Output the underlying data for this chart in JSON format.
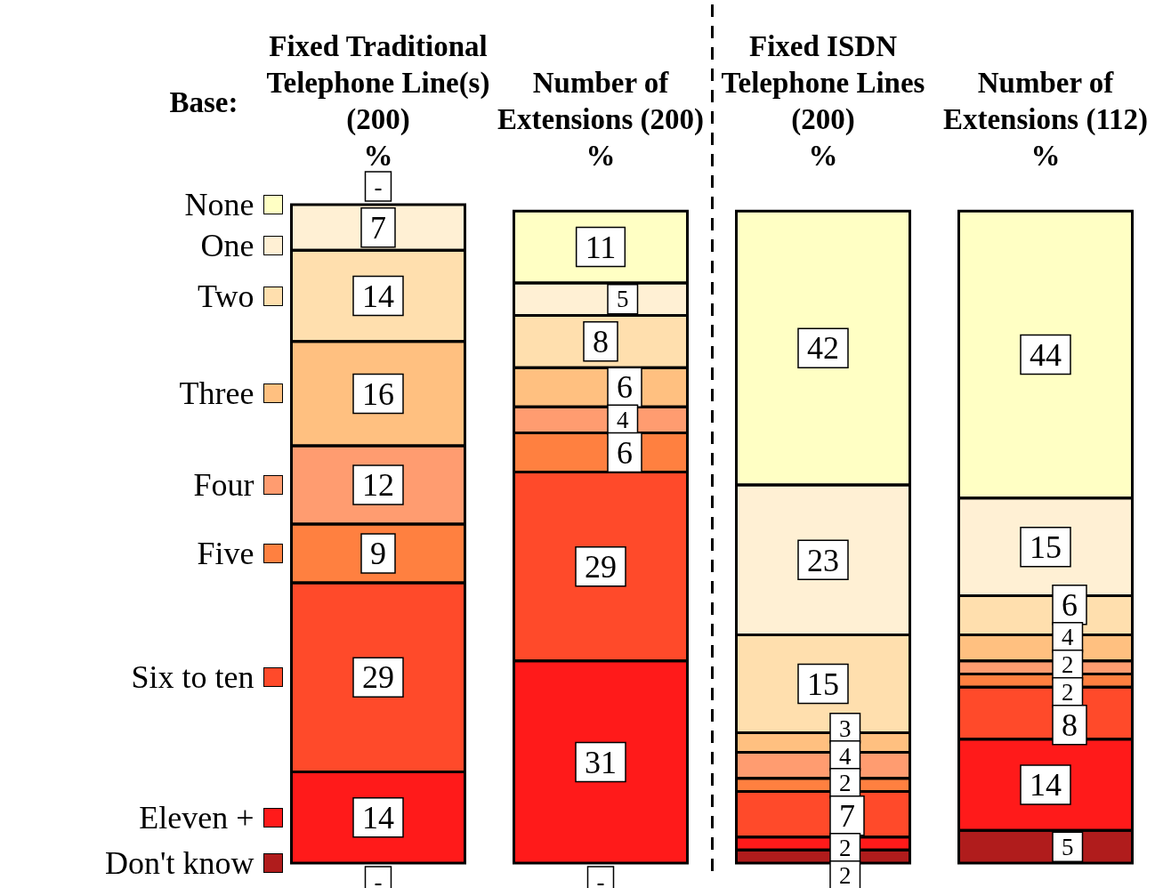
{
  "chart_data": {
    "type": "bar",
    "stacked": true,
    "xlabel": "Base:",
    "ylabel": "%",
    "categories": [
      "Fixed Traditional Telephone Line(s) (200)",
      "Number of Extensions (200)",
      "Fixed ISDN Telephone Lines (200)",
      "Number of Extensions (112)"
    ],
    "tick_labels": "x",
    "legend": "left",
    "series": [
      {
        "name": "Don't know",
        "color": "#b01c1c",
        "values": [
          null,
          null,
          2,
          5
        ],
        "value_labels": [
          "-",
          "-",
          "2",
          "5"
        ]
      },
      {
        "name": "Eleven +",
        "color": "#ff1a1a",
        "values": [
          14,
          31,
          2,
          14
        ],
        "value_labels": [
          "14",
          "31",
          "2",
          "14"
        ]
      },
      {
        "name": "Six to ten",
        "color": "#ff4a2a",
        "values": [
          29,
          29,
          7,
          8
        ],
        "value_labels": [
          "29",
          "29",
          "7",
          "8"
        ]
      },
      {
        "name": "Five",
        "color": "#ff8040",
        "values": [
          9,
          6,
          2,
          2
        ],
        "value_labels": [
          "9",
          "6",
          "2",
          "2"
        ]
      },
      {
        "name": "Four",
        "color": "#ff9c70",
        "values": [
          12,
          4,
          4,
          2
        ],
        "value_labels": [
          "12",
          "4",
          "4",
          "2"
        ]
      },
      {
        "name": "Three",
        "color": "#ffc080",
        "values": [
          16,
          6,
          3,
          4
        ],
        "value_labels": [
          "16",
          "6",
          "3",
          "4"
        ]
      },
      {
        "name": "Two",
        "color": "#ffdfae",
        "values": [
          14,
          8,
          15,
          6
        ],
        "value_labels": [
          "14",
          "8",
          "15",
          "6"
        ]
      },
      {
        "name": "One",
        "color": "#fff0d4",
        "values": [
          7,
          5,
          23,
          15
        ],
        "value_labels": [
          "7",
          "5",
          "23",
          "15"
        ]
      },
      {
        "name": "None",
        "color": "#ffffc4",
        "values": [
          null,
          11,
          42,
          44
        ],
        "value_labels": [
          "-",
          "11",
          "42",
          "44"
        ]
      }
    ]
  }
}
